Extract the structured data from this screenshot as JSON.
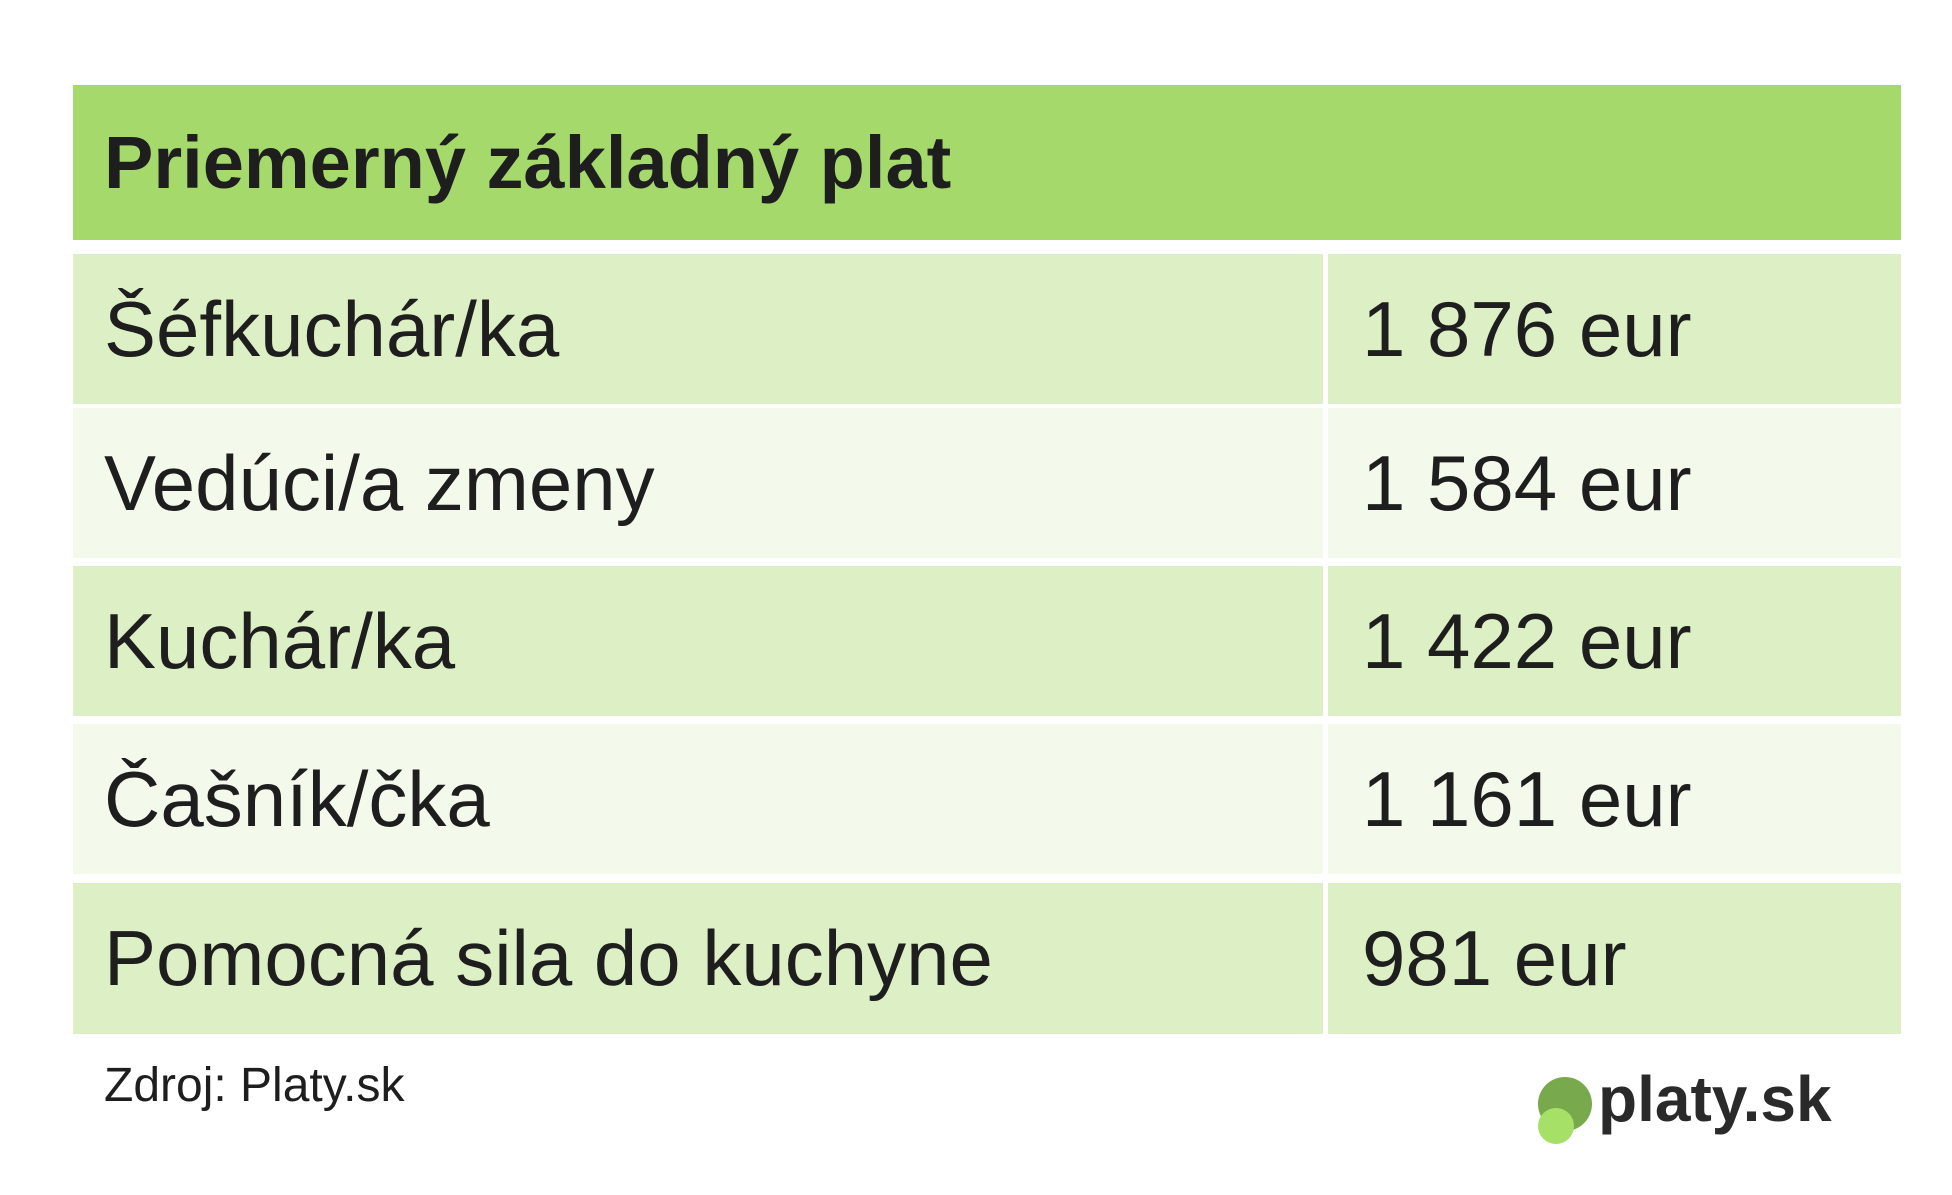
{
  "header": {
    "title": "Priemerný základný plat"
  },
  "table": {
    "rows": [
      [
        "Šéfkuchár/ka",
        "1 876 eur"
      ],
      [
        "Vedúci/a zmeny",
        "1 584 eur"
      ],
      [
        "Kuchár/ka",
        "1 422 eur"
      ],
      [
        "Čašník/čka",
        "1 161 eur"
      ],
      [
        "Pomocná sila do kuchyne",
        "981 eur"
      ]
    ]
  },
  "footer": {
    "source": "Zdroj: Platy.sk",
    "logo": "platy.sk"
  }
}
